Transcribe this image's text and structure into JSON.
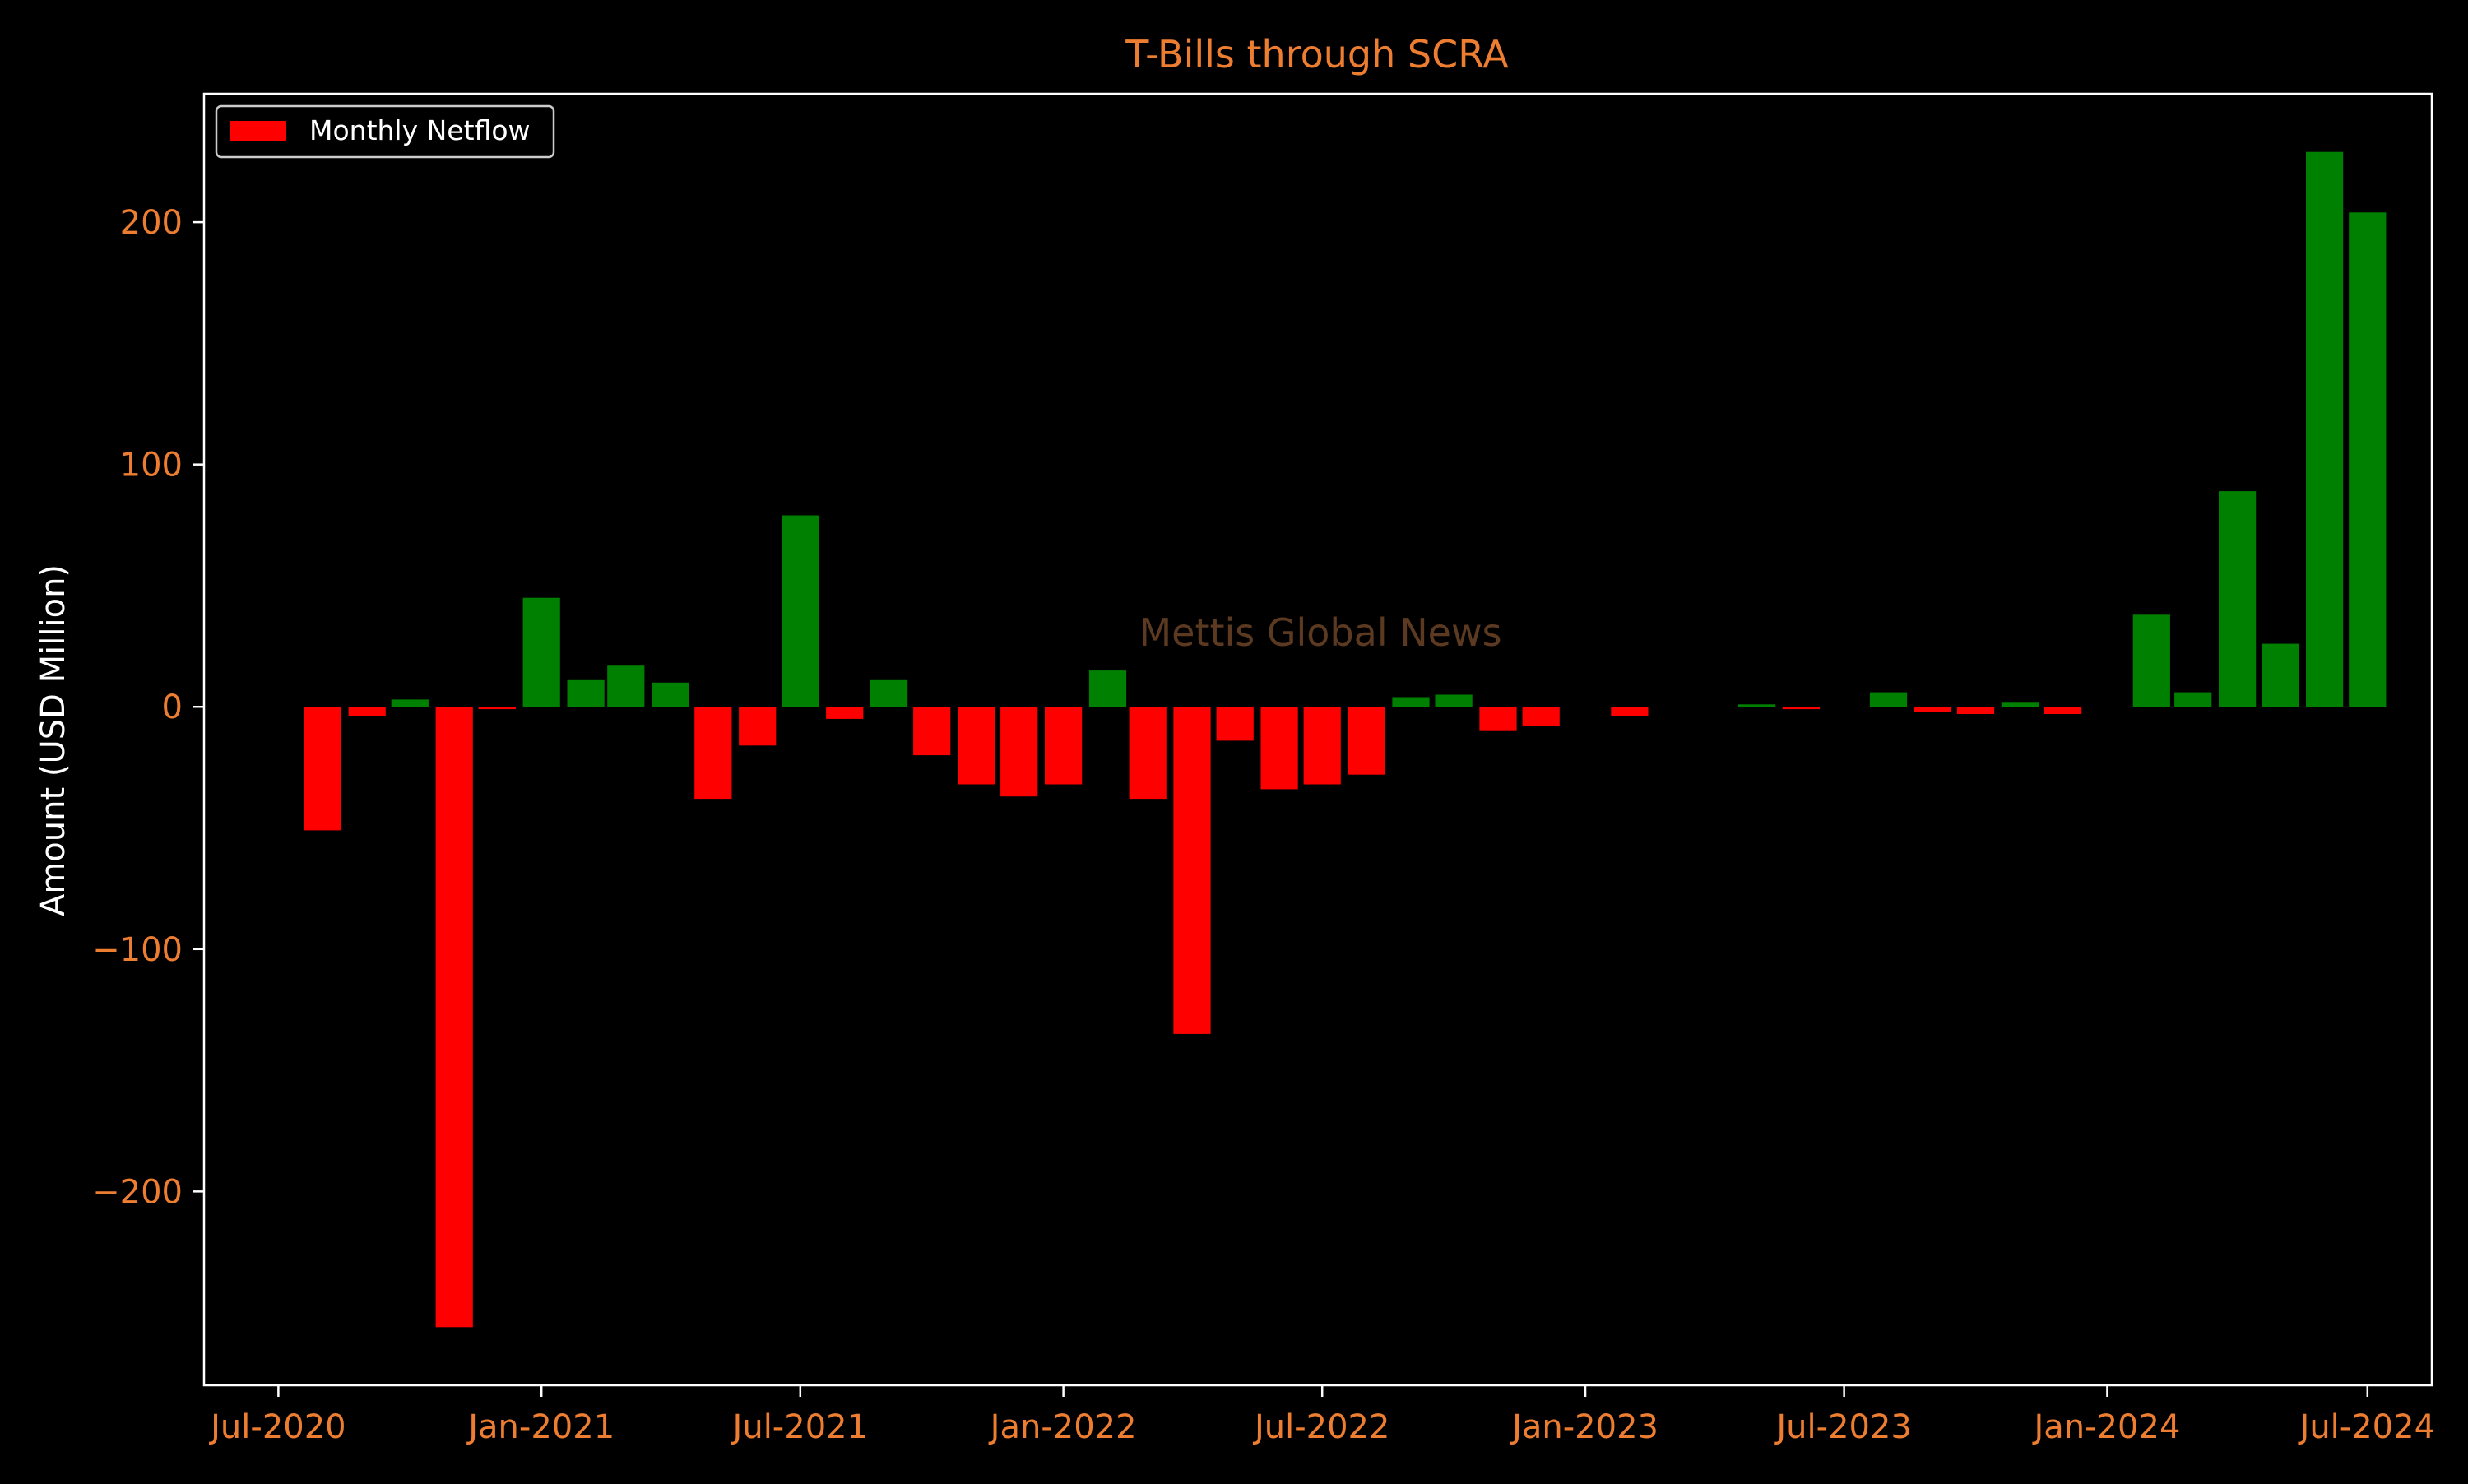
{
  "chart_data": {
    "type": "bar",
    "title": "T-Bills through SCRA",
    "xlabel": "",
    "ylabel": "Amount (USD Million)",
    "watermark": "Mettis Global News",
    "legend": {
      "label": "Monthly Netflow",
      "placement": "top-left"
    },
    "x_ticks": [
      "Jul-2020",
      "Jan-2021",
      "Jul-2021",
      "Jan-2022",
      "Jul-2022",
      "Jan-2023",
      "Jul-2023",
      "Jan-2024",
      "Jul-2024"
    ],
    "y_ticks": [
      -200,
      -100,
      0,
      100,
      200
    ],
    "ylim": [
      -280,
      253
    ],
    "xlim": [
      "2020-05-10",
      "2024-08-15"
    ],
    "grid": false,
    "colors": {
      "positive": "#008000",
      "negative": "#ff0000",
      "text_accent": "#ed7d31",
      "axis_label": "#ffffff",
      "frame": "#ffffff",
      "background": "#000000",
      "watermark": "#5c3a21"
    },
    "series": [
      {
        "name": "Monthly Netflow",
        "points": [
          {
            "date": "2020-08-01",
            "value": -51
          },
          {
            "date": "2020-09-01",
            "value": -4
          },
          {
            "date": "2020-10-01",
            "value": 3
          },
          {
            "date": "2020-11-01",
            "value": -256
          },
          {
            "date": "2020-12-01",
            "value": -1
          },
          {
            "date": "2021-01-01",
            "value": 45
          },
          {
            "date": "2021-02-01",
            "value": 11
          },
          {
            "date": "2021-03-01",
            "value": 17
          },
          {
            "date": "2021-04-01",
            "value": 10
          },
          {
            "date": "2021-05-01",
            "value": -38
          },
          {
            "date": "2021-06-01",
            "value": -16
          },
          {
            "date": "2021-07-01",
            "value": 79
          },
          {
            "date": "2021-08-01",
            "value": -5
          },
          {
            "date": "2021-09-01",
            "value": 11
          },
          {
            "date": "2021-10-01",
            "value": -20
          },
          {
            "date": "2021-11-01",
            "value": -32
          },
          {
            "date": "2021-12-01",
            "value": -37
          },
          {
            "date": "2022-01-01",
            "value": -32
          },
          {
            "date": "2022-02-01",
            "value": 15
          },
          {
            "date": "2022-03-01",
            "value": -38
          },
          {
            "date": "2022-04-01",
            "value": -135
          },
          {
            "date": "2022-05-01",
            "value": -14
          },
          {
            "date": "2022-06-01",
            "value": -34
          },
          {
            "date": "2022-07-01",
            "value": -32
          },
          {
            "date": "2022-08-01",
            "value": -28
          },
          {
            "date": "2022-09-01",
            "value": 4
          },
          {
            "date": "2022-10-01",
            "value": 5
          },
          {
            "date": "2022-11-01",
            "value": -10
          },
          {
            "date": "2022-12-01",
            "value": -8
          },
          {
            "date": "2023-02-01",
            "value": -4
          },
          {
            "date": "2023-05-01",
            "value": 1
          },
          {
            "date": "2023-06-01",
            "value": -1
          },
          {
            "date": "2023-08-01",
            "value": 6
          },
          {
            "date": "2023-09-01",
            "value": -2
          },
          {
            "date": "2023-10-01",
            "value": -3
          },
          {
            "date": "2023-11-01",
            "value": 2
          },
          {
            "date": "2023-12-01",
            "value": -3
          },
          {
            "date": "2024-02-01",
            "value": 38
          },
          {
            "date": "2024-03-01",
            "value": 6
          },
          {
            "date": "2024-04-01",
            "value": 89
          },
          {
            "date": "2024-05-01",
            "value": 26
          },
          {
            "date": "2024-06-01",
            "value": 229
          },
          {
            "date": "2024-07-01",
            "value": 204
          }
        ]
      }
    ]
  }
}
